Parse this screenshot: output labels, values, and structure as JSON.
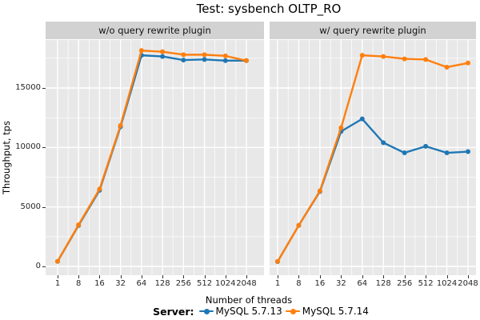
{
  "chart": {
    "title": "Test: sysbench OLTP_RO",
    "xlabel": "Number of threads",
    "ylabel": "Throughput, tps"
  },
  "legend": {
    "title": "Server:",
    "entries": [
      {
        "label": "MySQL 5.7.13",
        "color": "#1f77b4"
      },
      {
        "label": "MySQL 5.7.14",
        "color": "#ff7f0e"
      }
    ]
  },
  "chart_data": {
    "type": "line",
    "title": "Test: sysbench OLTP_RO",
    "xlabel": "Number of threads",
    "ylabel": "Throughput, tps",
    "categories": [
      "1",
      "8",
      "16",
      "32",
      "64",
      "128",
      "256",
      "512",
      "1024",
      "2048"
    ],
    "yticks": [
      0,
      5000,
      10000,
      15000
    ],
    "yticks_minor": [
      2500,
      7500,
      12500,
      17500
    ],
    "ylim": [
      -750,
      19050
    ],
    "grid": true,
    "legend_position": "bottom",
    "legend_title": "Server:",
    "panels": [
      {
        "label": "w/o query rewrite plugin",
        "series": [
          {
            "name": "MySQL 5.7.13",
            "color": "#1f77b4",
            "values": [
              420,
              3450,
              6400,
              11750,
              17750,
              17650,
              17350,
              17400,
              17300,
              17300
            ]
          },
          {
            "name": "MySQL 5.7.14",
            "color": "#ff7f0e",
            "values": [
              430,
              3500,
              6500,
              11850,
              18150,
              18050,
              17800,
              17800,
              17700,
              17300
            ]
          }
        ]
      },
      {
        "label": "w/ query rewrite plugin",
        "series": [
          {
            "name": "MySQL 5.7.13",
            "color": "#1f77b4",
            "values": [
              400,
              3450,
              6300,
              11350,
              12400,
              10400,
              9550,
              10100,
              9550,
              9650
            ]
          },
          {
            "name": "MySQL 5.7.14",
            "color": "#ff7f0e",
            "values": [
              420,
              3450,
              6350,
              11650,
              17750,
              17650,
              17450,
              17400,
              16750,
              17100
            ]
          }
        ]
      }
    ],
    "colors": {
      "panel_bg": "#e8e8e8",
      "strip_bg": "#d2d2d2",
      "grid": "#ffffff",
      "series_blue": "#1f77b4",
      "series_orange": "#ff7f0e"
    }
  }
}
